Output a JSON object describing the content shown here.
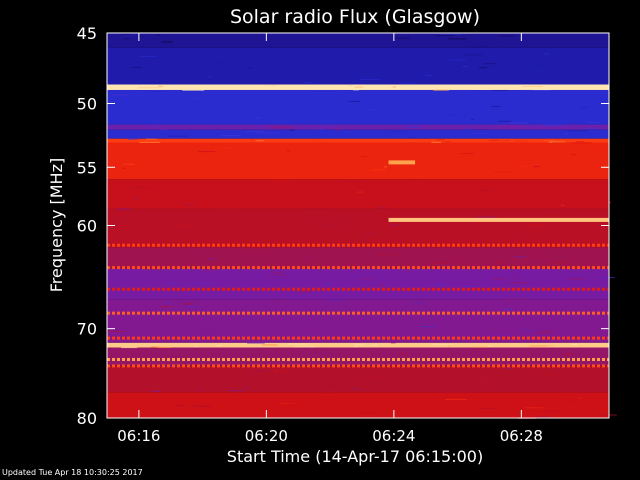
{
  "chart_data": {
    "type": "heatmap",
    "title": "Solar radio Flux (Glasgow)",
    "xlabel": "Start Time (14-Apr-17 06:15:00)",
    "ylabel": "Frequency [MHz]",
    "x_range": [
      "06:15:00",
      "06:30:45"
    ],
    "x_ticks": [
      "06:16",
      "06:20",
      "06:24",
      "06:28"
    ],
    "y_range": [
      45,
      80
    ],
    "y_ticks": [
      45,
      50,
      55,
      60,
      70,
      80
    ],
    "y_scale": "log",
    "colormap": [
      "#000000",
      "#1a0a78",
      "#2426c8",
      "#3a38e0",
      "#7a1aa0",
      "#b0102c",
      "#d81010",
      "#ff3a10",
      "#ff9a40",
      "#ffe6b0"
    ],
    "bands": [
      {
        "from_mhz": 45.0,
        "to_mhz": 46.0,
        "level": 0.15
      },
      {
        "from_mhz": 46.0,
        "to_mhz": 48.6,
        "level": 0.18
      },
      {
        "from_mhz": 48.6,
        "to_mhz": 49.0,
        "level": 1.0
      },
      {
        "from_mhz": 49.0,
        "to_mhz": 51.6,
        "level": 0.26
      },
      {
        "from_mhz": 51.6,
        "to_mhz": 52.0,
        "level": 0.42
      },
      {
        "from_mhz": 52.0,
        "to_mhz": 52.7,
        "level": 0.26
      },
      {
        "from_mhz": 52.7,
        "to_mhz": 53.0,
        "level": 0.78
      },
      {
        "from_mhz": 53.0,
        "to_mhz": 56.0,
        "level": 0.72
      },
      {
        "from_mhz": 56.0,
        "to_mhz": 58.5,
        "level": 0.62
      },
      {
        "from_mhz": 58.5,
        "to_mhz": 62.0,
        "level": 0.58
      },
      {
        "from_mhz": 62.0,
        "to_mhz": 64.0,
        "level": 0.52
      },
      {
        "from_mhz": 64.0,
        "to_mhz": 67.0,
        "level": 0.44
      },
      {
        "from_mhz": 67.0,
        "to_mhz": 71.5,
        "level": 0.46
      },
      {
        "from_mhz": 71.5,
        "to_mhz": 72.0,
        "level": 0.96
      },
      {
        "from_mhz": 72.0,
        "to_mhz": 74.0,
        "level": 0.5
      },
      {
        "from_mhz": 74.0,
        "to_mhz": 77.0,
        "level": 0.56
      },
      {
        "from_mhz": 77.0,
        "to_mhz": 80.0,
        "level": 0.64
      }
    ],
    "interference_lines": [
      {
        "mhz": 61.8,
        "level": 0.78
      },
      {
        "mhz": 63.9,
        "level": 0.8
      },
      {
        "mhz": 66.0,
        "level": 0.7
      },
      {
        "mhz": 68.4,
        "level": 0.82
      },
      {
        "mhz": 71.0,
        "level": 0.78
      },
      {
        "mhz": 73.3,
        "level": 0.9
      },
      {
        "mhz": 74.0,
        "level": 0.8
      }
    ],
    "events": [
      {
        "kind": "step",
        "start_time": "06:23:50",
        "end_time": "06:30:45",
        "mhz": 59.5,
        "level": 0.95
      },
      {
        "kind": "step",
        "start_time": "06:23:50",
        "end_time": "06:24:40",
        "mhz": 54.6,
        "level": 0.9
      }
    ]
  },
  "footer": {
    "updated": "Updated Tue Apr 18 10:30:25 2017"
  }
}
